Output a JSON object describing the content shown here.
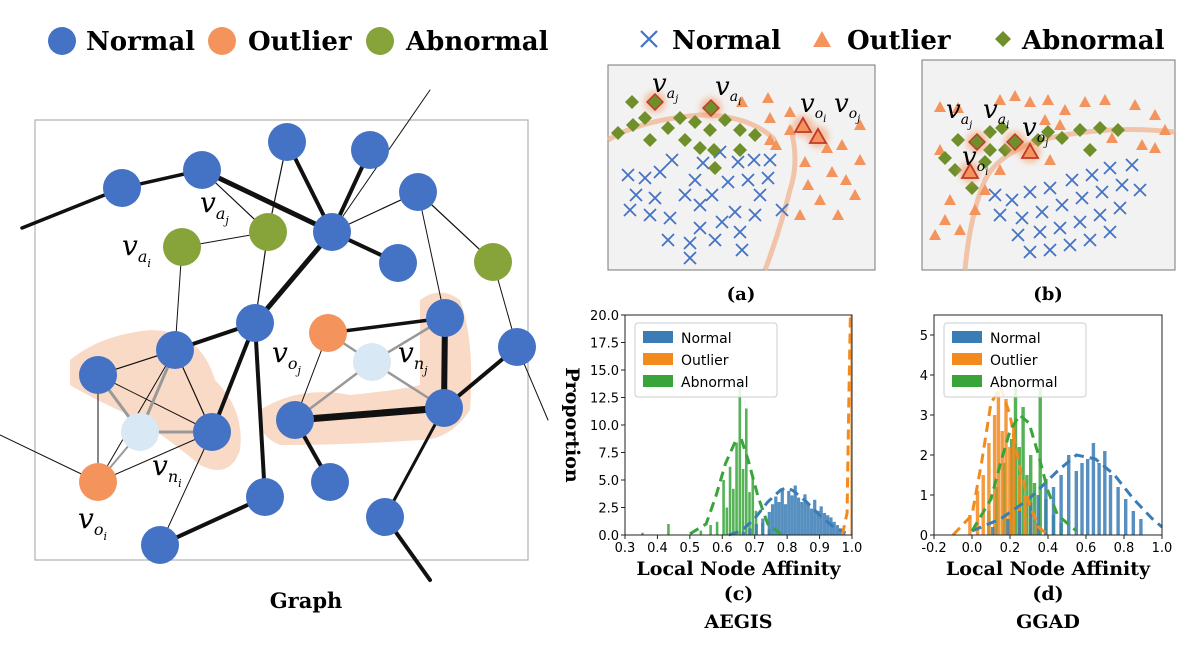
{
  "colors": {
    "normal": "#4472c4",
    "outlier": "#f4945c",
    "abnormal": "#86a43a",
    "hist_normal": "#3a7db5",
    "hist_outlier": "#f28a1e",
    "hist_abnormal": "#38a43a",
    "highlight": "#f8d4bc",
    "ghost": "#d9e8f5"
  },
  "graph_panel": {
    "legend": {
      "normal": "Normal",
      "outlier": "Outlier",
      "abnormal": "Abnormal"
    },
    "caption": "Graph",
    "labels": {
      "va_i": {
        "base": "v",
        "sub": "a",
        "subsub": "i"
      },
      "va_j": {
        "base": "v",
        "sub": "a",
        "subsub": "j"
      },
      "vo_i": {
        "base": "v",
        "sub": "o",
        "subsub": "i"
      },
      "vo_j": {
        "base": "v",
        "sub": "o",
        "subsub": "j"
      },
      "vn_i": {
        "base": "v",
        "sub": "n",
        "subsub": "i"
      },
      "vn_j": {
        "base": "v",
        "sub": "n",
        "subsub": "j"
      }
    }
  },
  "embedding_panels": {
    "legend": {
      "normal": "Normal",
      "outlier": "Outlier",
      "abnormal": "Abnormal"
    },
    "a": {
      "caption": "(a)",
      "labels": {
        "va_j": {
          "base": "v",
          "sub": "a",
          "subsub": "j"
        },
        "va_i": {
          "base": "v",
          "sub": "a",
          "subsub": "i"
        },
        "vo_i": {
          "base": "v",
          "sub": "o",
          "subsub": "i"
        },
        "vo_j": {
          "base": "v",
          "sub": "o",
          "subsub": "j"
        }
      }
    },
    "b": {
      "caption": "(b)",
      "labels": {
        "va_j": {
          "base": "v",
          "sub": "a",
          "subsub": "j"
        },
        "va_i": {
          "base": "v",
          "sub": "a",
          "subsub": "i"
        },
        "vo_j": {
          "base": "v",
          "sub": "o",
          "subsub": "j"
        },
        "vo_i": {
          "base": "v",
          "sub": "o",
          "subsub": "i"
        }
      }
    }
  },
  "chart_data": [
    {
      "type": "bar",
      "panel": "(c)",
      "method": "AEGIS",
      "xlabel": "Local Node Affinity",
      "ylabel": "Proportion",
      "xlim": [
        0.3,
        1.0
      ],
      "ylim": [
        0,
        20.0
      ],
      "xticks": [
        "0.3",
        "0.4",
        "0.5",
        "0.6",
        "0.7",
        "0.8",
        "0.9",
        "1.0"
      ],
      "yticks": [
        "0.0",
        "2.5",
        "5.0",
        "7.5",
        "10.0",
        "12.5",
        "15.0",
        "17.5",
        "20.0"
      ],
      "legend": [
        "Normal",
        "Outlier",
        "Abnormal"
      ],
      "series": [
        {
          "name": "Normal",
          "bin_width": 0.01,
          "bins": [
            [
              0.66,
              0.3
            ],
            [
              0.68,
              0.6
            ],
            [
              0.7,
              1.0
            ],
            [
              0.72,
              1.5
            ],
            [
              0.74,
              2.1
            ],
            [
              0.75,
              2.8
            ],
            [
              0.76,
              3.5
            ],
            [
              0.77,
              3.0
            ],
            [
              0.78,
              4.2
            ],
            [
              0.79,
              2.8
            ],
            [
              0.8,
              4.0
            ],
            [
              0.81,
              3.6
            ],
            [
              0.82,
              4.5
            ],
            [
              0.83,
              3.4
            ],
            [
              0.84,
              3.0
            ],
            [
              0.85,
              3.7
            ],
            [
              0.86,
              2.8
            ],
            [
              0.87,
              2.4
            ],
            [
              0.88,
              3.2
            ],
            [
              0.89,
              2.2
            ],
            [
              0.9,
              2.6
            ],
            [
              0.91,
              2.0
            ],
            [
              0.92,
              1.8
            ],
            [
              0.93,
              1.6
            ],
            [
              0.94,
              1.2
            ],
            [
              0.95,
              0.9
            ],
            [
              0.96,
              0.6
            ],
            [
              0.97,
              0.3
            ]
          ],
          "kde_x": [
            0.62,
            0.66,
            0.7,
            0.74,
            0.78,
            0.8,
            0.82,
            0.86,
            0.9,
            0.94,
            0.98
          ],
          "kde_y": [
            0.0,
            0.4,
            1.5,
            3.0,
            4.1,
            4.3,
            4.0,
            3.0,
            1.8,
            0.8,
            0.2
          ]
        },
        {
          "name": "Outlier",
          "bin_width": 0.005,
          "bins": [
            [
              0.995,
              20.0
            ]
          ],
          "kde_x": [
            0.97,
            0.985,
            0.99,
            0.995,
            1.0
          ],
          "kde_y": [
            0.0,
            2.0,
            12.0,
            20.0,
            20.0
          ]
        },
        {
          "name": "Abnormal",
          "bin_width": 0.008,
          "bins": [
            [
              0.35,
              0.2
            ],
            [
              0.43,
              1.0
            ],
            [
              0.53,
              0.4
            ],
            [
              0.56,
              0.9
            ],
            [
              0.58,
              1.2
            ],
            [
              0.6,
              5.0
            ],
            [
              0.61,
              2.5
            ],
            [
              0.62,
              6.2
            ],
            [
              0.63,
              4.2
            ],
            [
              0.64,
              8.4
            ],
            [
              0.65,
              13.8
            ],
            [
              0.66,
              6.0
            ],
            [
              0.67,
              11.5
            ],
            [
              0.68,
              3.9
            ],
            [
              0.69,
              5.2
            ],
            [
              0.7,
              2.2
            ],
            [
              0.72,
              1.1
            ],
            [
              0.74,
              0.5
            ]
          ],
          "kde_x": [
            0.5,
            0.55,
            0.58,
            0.61,
            0.64,
            0.66,
            0.68,
            0.71,
            0.74,
            0.78
          ],
          "kde_y": [
            0.1,
            1.0,
            3.5,
            6.5,
            8.5,
            8.6,
            6.8,
            3.5,
            1.0,
            0.1
          ]
        }
      ]
    },
    {
      "type": "bar",
      "panel": "(d)",
      "method": "GGAD",
      "xlabel": "Local Node Affinity",
      "ylabel": "Proportion",
      "xlim": [
        -0.2,
        1.0
      ],
      "ylim": [
        0,
        5.5
      ],
      "xticks": [
        "-0.2",
        "0.0",
        "0.2",
        "0.4",
        "0.6",
        "0.8",
        "1.0"
      ],
      "yticks": [
        "0",
        "1",
        "2",
        "3",
        "4",
        "5"
      ],
      "legend": [
        "Normal",
        "Outlier",
        "Abnormal"
      ],
      "series": [
        {
          "name": "Normal",
          "bin_width": 0.018,
          "bins": [
            [
              0.1,
              0.2
            ],
            [
              0.18,
              0.4
            ],
            [
              0.24,
              0.6
            ],
            [
              0.3,
              0.8
            ],
            [
              0.34,
              1.0
            ],
            [
              0.38,
              1.4
            ],
            [
              0.42,
              1.2
            ],
            [
              0.46,
              1.5
            ],
            [
              0.5,
              2.0
            ],
            [
              0.54,
              1.6
            ],
            [
              0.57,
              1.8
            ],
            [
              0.6,
              1.9
            ],
            [
              0.63,
              2.3
            ],
            [
              0.66,
              1.8
            ],
            [
              0.69,
              2.1
            ],
            [
              0.72,
              1.5
            ],
            [
              0.76,
              1.2
            ],
            [
              0.8,
              0.9
            ],
            [
              0.84,
              0.6
            ],
            [
              0.88,
              0.4
            ]
          ],
          "kde_x": [
            0.0,
            0.15,
            0.3,
            0.45,
            0.55,
            0.65,
            0.75,
            0.85,
            0.95,
            1.0
          ],
          "kde_y": [
            0.1,
            0.4,
            0.9,
            1.6,
            2.0,
            1.9,
            1.5,
            0.9,
            0.4,
            0.2
          ]
        },
        {
          "name": "Outlier",
          "bin_width": 0.018,
          "bins": [
            [
              -0.02,
              0.5
            ],
            [
              0.02,
              1.1
            ],
            [
              0.05,
              1.5
            ],
            [
              0.08,
              2.3
            ],
            [
              0.11,
              3.0
            ],
            [
              0.13,
              3.6
            ],
            [
              0.15,
              2.6
            ],
            [
              0.17,
              3.4
            ],
            [
              0.19,
              2.2
            ],
            [
              0.21,
              2.8
            ],
            [
              0.24,
              1.5
            ],
            [
              0.27,
              1.0
            ],
            [
              0.3,
              0.6
            ],
            [
              0.33,
              0.3
            ]
          ],
          "kde_x": [
            -0.1,
            0.0,
            0.05,
            0.1,
            0.15,
            0.2,
            0.25,
            0.3,
            0.35,
            0.4
          ],
          "kde_y": [
            0.0,
            0.5,
            1.8,
            3.3,
            3.7,
            3.0,
            1.7,
            0.8,
            0.2,
            0.0
          ]
        },
        {
          "name": "Abnormal",
          "bin_width": 0.018,
          "bins": [
            [
              0.08,
              0.6
            ],
            [
              0.12,
              1.2
            ],
            [
              0.16,
              1.8
            ],
            [
              0.2,
              2.4
            ],
            [
              0.22,
              3.8
            ],
            [
              0.24,
              2.2
            ],
            [
              0.26,
              3.2
            ],
            [
              0.28,
              1.5
            ],
            [
              0.3,
              2.0
            ],
            [
              0.32,
              1.3
            ],
            [
              0.35,
              3.7
            ],
            [
              0.38,
              0.9
            ],
            [
              0.42,
              0.5
            ],
            [
              0.46,
              0.3
            ]
          ],
          "kde_x": [
            0.0,
            0.1,
            0.15,
            0.2,
            0.25,
            0.3,
            0.35,
            0.4,
            0.45,
            0.55
          ],
          "kde_y": [
            0.1,
            0.9,
            1.8,
            2.6,
            3.0,
            2.8,
            2.0,
            1.1,
            0.5,
            0.1
          ]
        }
      ]
    }
  ]
}
